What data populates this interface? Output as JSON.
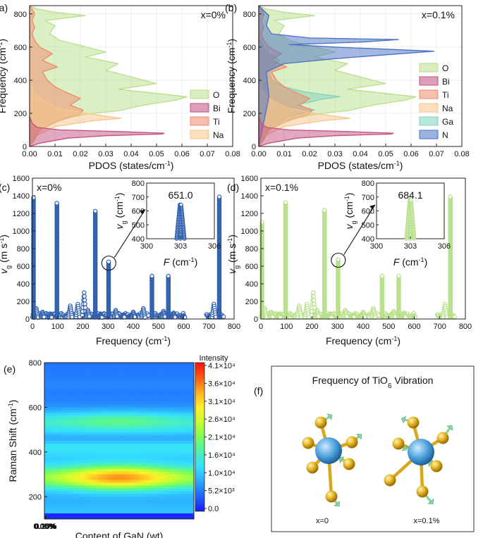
{
  "chart_data": [
    {
      "id": "a",
      "type": "area",
      "panel_label": "(a)",
      "annotation": "x=0%",
      "xlabel": "PDOS (states/cm⁻¹)",
      "ylabel": "Frequency (cm⁻¹)",
      "xlim": [
        0,
        0.08
      ],
      "ylim": [
        0,
        850
      ],
      "xticks": [
        "0.00",
        "0.01",
        "0.02",
        "0.03",
        "0.04",
        "0.05",
        "0.06",
        "0.07",
        "0.08"
      ],
      "yticks": [
        "0",
        "200",
        "400",
        "600",
        "800"
      ],
      "legend": [
        "O",
        "Bi",
        "Ti",
        "Na"
      ],
      "series": [
        {
          "name": "O",
          "color": "#b8e08a",
          "points": [
            [
              0,
              0
            ],
            [
              0.002,
              40
            ],
            [
              0.004,
              100
            ],
            [
              0.009,
              140
            ],
            [
              0.016,
              175
            ],
            [
              0.025,
              200
            ],
            [
              0.035,
              215
            ],
            [
              0.045,
              250
            ],
            [
              0.058,
              280
            ],
            [
              0.062,
              300
            ],
            [
              0.05,
              320
            ],
            [
              0.035,
              345
            ],
            [
              0.05,
              380
            ],
            [
              0.04,
              420
            ],
            [
              0.03,
              460
            ],
            [
              0.035,
              500
            ],
            [
              0.022,
              540
            ],
            [
              0.03,
              570
            ],
            [
              0.02,
              610
            ],
            [
              0.012,
              640
            ],
            [
              0.008,
              680
            ],
            [
              0.01,
              730
            ],
            [
              0.006,
              760
            ],
            [
              0.022,
              790
            ],
            [
              0.01,
              810
            ],
            [
              0.003,
              830
            ],
            [
              0,
              850
            ]
          ]
        },
        {
          "name": "Ti",
          "color": "#f08a6a",
          "points": [
            [
              0,
              0
            ],
            [
              0.004,
              100
            ],
            [
              0.012,
              160
            ],
            [
              0.02,
              195
            ],
            [
              0.021,
              220
            ],
            [
              0.016,
              250
            ],
            [
              0.02,
              290
            ],
            [
              0.014,
              330
            ],
            [
              0.01,
              360
            ],
            [
              0.007,
              400
            ],
            [
              0.005,
              450
            ],
            [
              0.011,
              480
            ],
            [
              0.005,
              520
            ],
            [
              0.009,
              560
            ],
            [
              0.004,
              600
            ],
            [
              0.002,
              640
            ],
            [
              0.001,
              680
            ],
            [
              0.002,
              720
            ],
            [
              0.001,
              760
            ],
            [
              0.002,
              800
            ],
            [
              0.001,
              830
            ],
            [
              0,
              850
            ]
          ]
        },
        {
          "name": "Na",
          "color": "#f8c48a",
          "points": [
            [
              0,
              0
            ],
            [
              0.002,
              60
            ],
            [
              0.01,
              120
            ],
            [
              0.025,
              155
            ],
            [
              0.036,
              170
            ],
            [
              0.022,
              200
            ],
            [
              0.012,
              230
            ],
            [
              0.006,
              270
            ],
            [
              0.002,
              320
            ],
            [
              0,
              380
            ]
          ]
        },
        {
          "name": "Bi",
          "color": "#c4517f",
          "points": [
            [
              0,
              0
            ],
            [
              0.004,
              20
            ],
            [
              0.015,
              50
            ],
            [
              0.03,
              65
            ],
            [
              0.052,
              75
            ],
            [
              0.053,
              80
            ],
            [
              0.035,
              90
            ],
            [
              0.012,
              100
            ],
            [
              0.003,
              115
            ],
            [
              0.001,
              140
            ],
            [
              0,
              180
            ]
          ]
        }
      ]
    },
    {
      "id": "b",
      "type": "area",
      "panel_label": "(b)",
      "annotation": "x=0.1%",
      "xlabel": "PDOS (states/cm⁻¹)",
      "ylabel": "Frequency (cm⁻¹)",
      "xlim": [
        0,
        0.08
      ],
      "ylim": [
        0,
        850
      ],
      "xticks": [
        "0.00",
        "0.01",
        "0.02",
        "0.03",
        "0.04",
        "0.05",
        "0.06",
        "0.07",
        "0.08"
      ],
      "yticks": [
        "0",
        "200",
        "400",
        "600",
        "800"
      ],
      "legend": [
        "O",
        "Bi",
        "Ti",
        "Na",
        "Ga",
        "N"
      ],
      "series": [
        {
          "name": "O",
          "color": "#b8e08a",
          "points": [
            [
              0,
              0
            ],
            [
              0.002,
              40
            ],
            [
              0.004,
              100
            ],
            [
              0.009,
              140
            ],
            [
              0.016,
              175
            ],
            [
              0.025,
              200
            ],
            [
              0.035,
              215
            ],
            [
              0.045,
              250
            ],
            [
              0.058,
              280
            ],
            [
              0.062,
              300
            ],
            [
              0.05,
              320
            ],
            [
              0.035,
              345
            ],
            [
              0.05,
              380
            ],
            [
              0.04,
              420
            ],
            [
              0.03,
              460
            ],
            [
              0.035,
              500
            ],
            [
              0.022,
              540
            ],
            [
              0.03,
              570
            ],
            [
              0.02,
              610
            ],
            [
              0.012,
              640
            ],
            [
              0.008,
              680
            ],
            [
              0.01,
              730
            ],
            [
              0.006,
              760
            ],
            [
              0.022,
              790
            ],
            [
              0.01,
              810
            ],
            [
              0.003,
              830
            ],
            [
              0,
              850
            ]
          ]
        },
        {
          "name": "Ga",
          "color": "#7fd4be",
          "points": [
            [
              0,
              0
            ],
            [
              0.005,
              120
            ],
            [
              0.012,
              180
            ],
            [
              0.022,
              220
            ],
            [
              0.015,
              250
            ],
            [
              0.025,
              285
            ],
            [
              0.032,
              300
            ],
            [
              0.018,
              330
            ],
            [
              0.01,
              360
            ],
            [
              0.005,
              400
            ],
            [
              0.004,
              450
            ],
            [
              0.008,
              520
            ],
            [
              0.004,
              560
            ],
            [
              0.002,
              600
            ],
            [
              0,
              650
            ]
          ]
        },
        {
          "name": "Ti",
          "color": "#f08a6a",
          "points": [
            [
              0,
              0
            ],
            [
              0.004,
              100
            ],
            [
              0.012,
              160
            ],
            [
              0.02,
              195
            ],
            [
              0.021,
              220
            ],
            [
              0.016,
              250
            ],
            [
              0.02,
              290
            ],
            [
              0.014,
              330
            ],
            [
              0.01,
              360
            ],
            [
              0.007,
              400
            ],
            [
              0.005,
              450
            ],
            [
              0.011,
              480
            ],
            [
              0.005,
              520
            ],
            [
              0.009,
              560
            ],
            [
              0.004,
              600
            ],
            [
              0.002,
              640
            ],
            [
              0.001,
              680
            ],
            [
              0.002,
              720
            ],
            [
              0.001,
              760
            ],
            [
              0.002,
              800
            ],
            [
              0.001,
              830
            ],
            [
              0,
              850
            ]
          ]
        },
        {
          "name": "Na",
          "color": "#f8c48a",
          "points": [
            [
              0,
              0
            ],
            [
              0.002,
              60
            ],
            [
              0.01,
              120
            ],
            [
              0.025,
              155
            ],
            [
              0.036,
              170
            ],
            [
              0.022,
              200
            ],
            [
              0.012,
              230
            ],
            [
              0.006,
              270
            ],
            [
              0.002,
              320
            ],
            [
              0,
              380
            ]
          ]
        },
        {
          "name": "N",
          "color": "#4a72c4",
          "points": [
            [
              0,
              0
            ],
            [
              0.002,
              150
            ],
            [
              0.004,
              300
            ],
            [
              0.003,
              450
            ],
            [
              0.01,
              500
            ],
            [
              0.03,
              530
            ],
            [
              0.069,
              575
            ],
            [
              0.03,
              600
            ],
            [
              0.012,
              615
            ],
            [
              0.04,
              630
            ],
            [
              0.055,
              645
            ],
            [
              0.02,
              655
            ],
            [
              0.005,
              680
            ],
            [
              0.003,
              730
            ],
            [
              0.004,
              790
            ],
            [
              0.002,
              820
            ],
            [
              0,
              850
            ]
          ]
        },
        {
          "name": "Bi",
          "color": "#c4517f",
          "points": [
            [
              0,
              0
            ],
            [
              0.004,
              20
            ],
            [
              0.015,
              50
            ],
            [
              0.03,
              65
            ],
            [
              0.052,
              75
            ],
            [
              0.053,
              80
            ],
            [
              0.035,
              90
            ],
            [
              0.012,
              100
            ],
            [
              0.003,
              115
            ],
            [
              0.001,
              140
            ],
            [
              0,
              180
            ]
          ]
        }
      ]
    },
    {
      "id": "c",
      "type": "scatter",
      "panel_label": "(c)",
      "annotation": "x=0%",
      "color": "#2f5fae",
      "xlabel": "Frequency (cm⁻¹)",
      "ylabel": "vg (m s⁻¹)",
      "xlim": [
        0,
        800
      ],
      "ylim": [
        0,
        1600
      ],
      "xticks": [
        "0",
        "100",
        "200",
        "300",
        "400",
        "500",
        "600",
        "700",
        "800"
      ],
      "yticks": [
        "0",
        "200",
        "400",
        "600",
        "800",
        "1000",
        "1200",
        "1400",
        "1600"
      ],
      "spikes": [
        [
          5,
          1380
        ],
        [
          98,
          1320
        ],
        [
          250,
          1230
        ],
        [
          303,
          651
        ],
        [
          475,
          490
        ],
        [
          540,
          490
        ],
        [
          742,
          1390
        ]
      ],
      "bumps": [
        [
          15,
          120
        ],
        [
          40,
          80
        ],
        [
          70,
          60
        ],
        [
          150,
          150
        ],
        [
          180,
          170
        ],
        [
          205,
          300
        ],
        [
          220,
          100
        ],
        [
          270,
          60
        ],
        [
          330,
          100
        ],
        [
          360,
          50
        ],
        [
          400,
          80
        ],
        [
          440,
          120
        ],
        [
          520,
          90
        ],
        [
          560,
          70
        ],
        [
          600,
          40
        ],
        [
          720,
          170
        ]
      ],
      "inset": {
        "xlabel": "F (cm⁻¹)",
        "ylabel": "vg (cm⁻¹)",
        "value_label": "651.0",
        "xlim": [
          300,
          306
        ],
        "ylim": [
          400,
          800
        ],
        "xticks": [
          "300",
          "303",
          "306"
        ],
        "yticks": [
          "400",
          "500",
          "600",
          "700",
          "800"
        ],
        "peak_x": 303,
        "peak_y": 651.0
      }
    },
    {
      "id": "d",
      "type": "scatter",
      "panel_label": "(d)",
      "annotation": "x=0.1%",
      "color": "#b8e08a",
      "xlabel": "Frequency (cm⁻¹)",
      "ylabel": "vg (m s⁻¹)",
      "xlim": [
        0,
        800
      ],
      "ylim": [
        0,
        1600
      ],
      "xticks": [
        "0",
        "100",
        "200",
        "300",
        "400",
        "500",
        "600",
        "700",
        "800"
      ],
      "yticks": [
        "0",
        "200",
        "400",
        "600",
        "800",
        "1000",
        "1200",
        "1400",
        "1600"
      ],
      "spikes": [
        [
          5,
          1100
        ],
        [
          98,
          1330
        ],
        [
          250,
          1240
        ],
        [
          303,
          684
        ],
        [
          475,
          490
        ],
        [
          540,
          490
        ],
        [
          742,
          1390
        ]
      ],
      "bumps": [
        [
          15,
          120
        ],
        [
          40,
          80
        ],
        [
          70,
          60
        ],
        [
          150,
          150
        ],
        [
          180,
          170
        ],
        [
          205,
          300
        ],
        [
          220,
          100
        ],
        [
          270,
          60
        ],
        [
          330,
          100
        ],
        [
          360,
          50
        ],
        [
          400,
          80
        ],
        [
          440,
          120
        ],
        [
          520,
          90
        ],
        [
          560,
          70
        ],
        [
          600,
          40
        ],
        [
          720,
          170
        ]
      ],
      "inset": {
        "xlabel": "F (cm⁻¹)",
        "ylabel": "vg (cm⁻¹)",
        "value_label": "684.1",
        "xlim": [
          300,
          306
        ],
        "ylim": [
          400,
          800
        ],
        "xticks": [
          "300",
          "303",
          "306"
        ],
        "yticks": [
          "400",
          "500",
          "600",
          "700",
          "800"
        ],
        "peak_x": 303,
        "peak_y": 684.1
      }
    },
    {
      "id": "e",
      "type": "heatmap",
      "panel_label": "(e)",
      "xlabel": "Content of GaN (wt)",
      "ylabel": "Raman Shift (cm⁻¹)",
      "xlim": [
        0,
        0.2
      ],
      "ylim": [
        100,
        800
      ],
      "xticks": [
        "0.00%",
        "0.05%",
        "0.10%",
        "0.15%",
        "0.20%"
      ],
      "yticks": [
        "200",
        "400",
        "600",
        "800"
      ],
      "colorbar_title": "Intensity",
      "colorbar_ticks": [
        "4.1×10⁴",
        "3.6×10⁴",
        "3.1×10⁴",
        "2.6×10⁴",
        "2.1×10⁴",
        "1.6×10⁴",
        "1.0×10⁴",
        "5.2×10³",
        "0.0"
      ],
      "zlim": [
        0,
        41000
      ]
    }
  ],
  "panel_f": {
    "panel_label": "(f)",
    "title": "Frequency of TiO",
    "title_sub": "6",
    "title_end": " Vibration",
    "left_label": "x=0",
    "right_label": "x=0.1%"
  }
}
